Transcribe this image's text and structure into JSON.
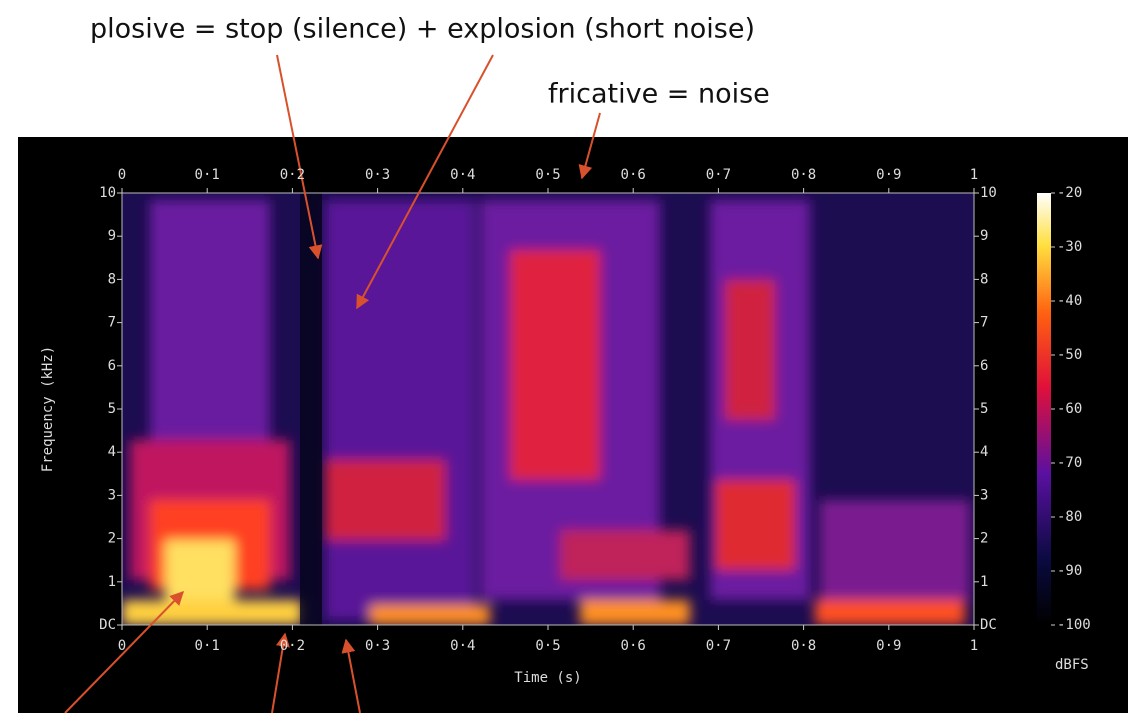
{
  "chart_data": {
    "type": "spectrogram",
    "annotations": [
      "plosive  = stop (silence) + explosion (short noise)",
      "fricative = noise"
    ],
    "xlabel": "Time (s)",
    "ylabel": "Frequency (kHz)",
    "xlim": [
      0,
      1
    ],
    "xticks": [
      0,
      {
        "value": 0.1,
        "label": "0·1"
      },
      {
        "value": 0.2,
        "label": "0·2"
      },
      {
        "value": 0.3,
        "label": "0·3"
      },
      {
        "value": 0.4,
        "label": "0·4"
      },
      {
        "value": 0.5,
        "label": "0·5"
      },
      {
        "value": 0.6,
        "label": "0·6"
      },
      {
        "value": 0.7,
        "label": "0·7"
      },
      {
        "value": 0.8,
        "label": "0·8"
      },
      {
        "value": 0.9,
        "label": "0·9"
      },
      1
    ],
    "ylim": [
      0,
      10
    ],
    "yticks": [
      {
        "value": 0,
        "label": "DC"
      },
      1,
      2,
      3,
      4,
      5,
      6,
      7,
      8,
      9,
      10
    ],
    "colorbar": {
      "label": "dBFS",
      "lim": [
        -100,
        -20
      ],
      "ticks": [
        -20,
        -30,
        -40,
        -50,
        -60,
        -70,
        -80,
        -90,
        -100
      ]
    }
  }
}
